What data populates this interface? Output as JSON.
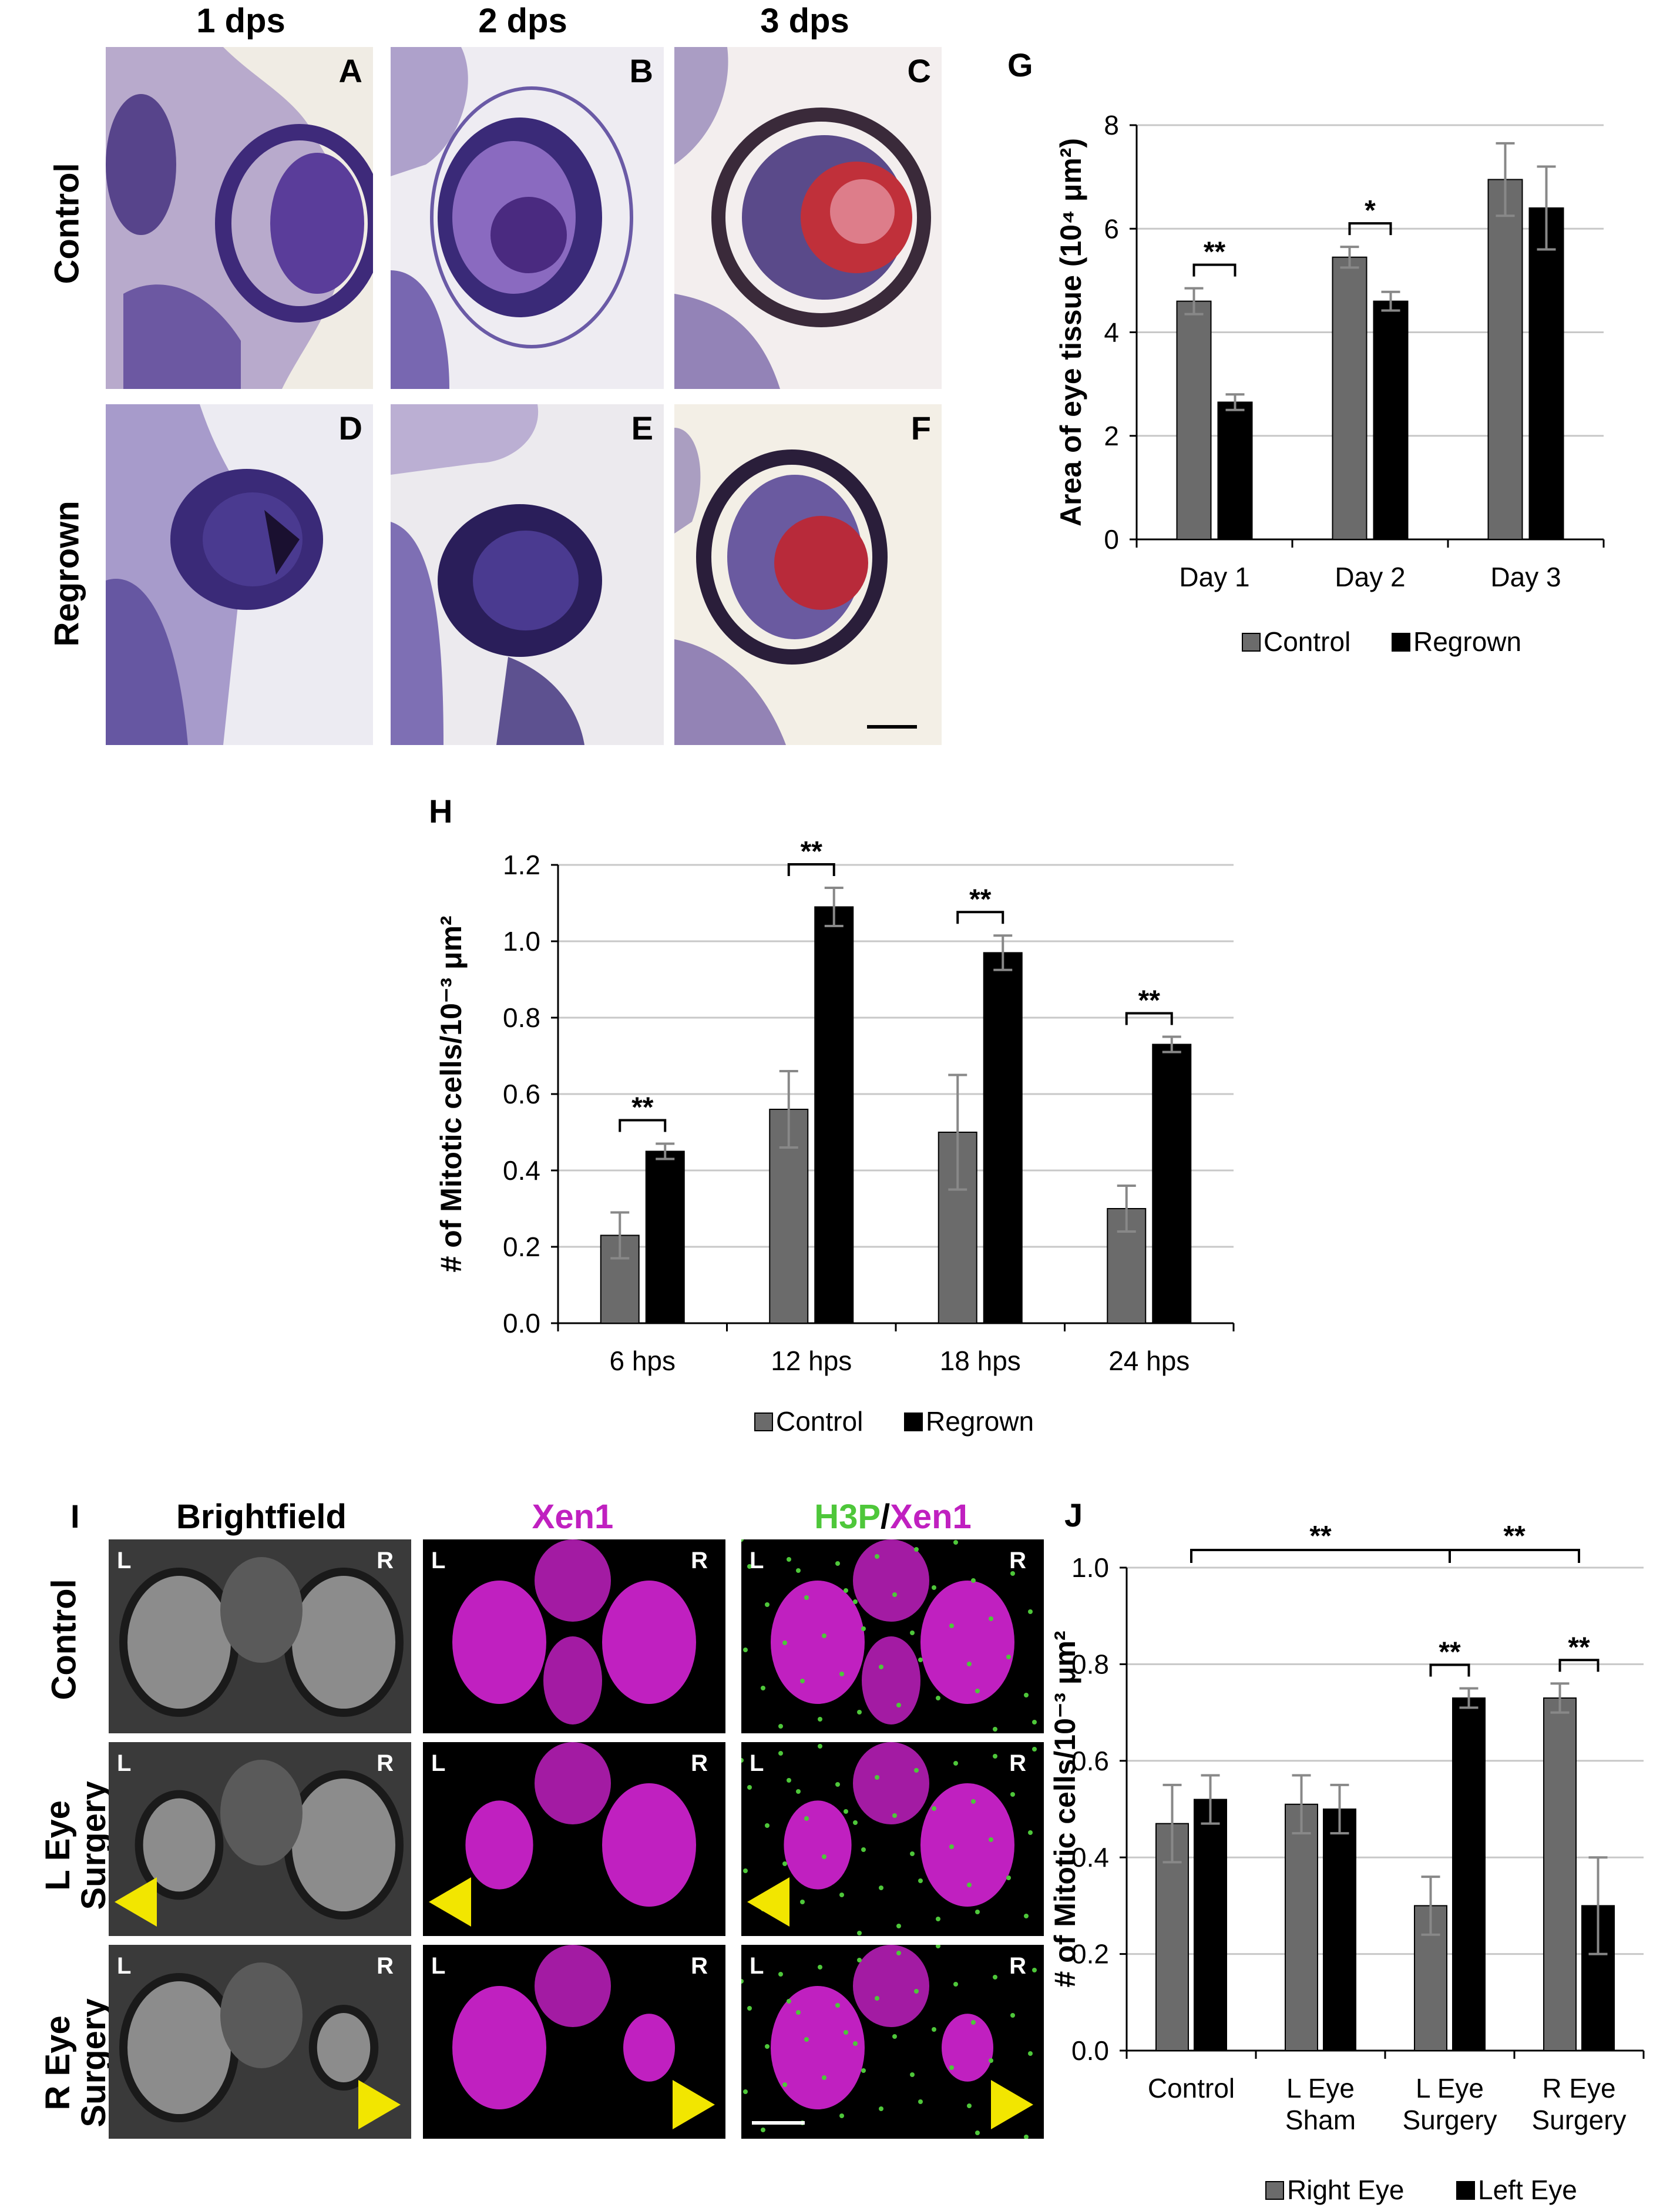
{
  "histology": {
    "columns": [
      "1 dps",
      "2 dps",
      "3 dps"
    ],
    "rows": [
      "Control",
      "Regrown"
    ],
    "panel_letters": [
      "A",
      "B",
      "C",
      "D",
      "E",
      "F"
    ]
  },
  "fluor": {
    "panel_letter": "I",
    "columns": {
      "brightfield": "Brightfield",
      "xen1": "Xen1",
      "h3p": "H3P",
      "slash": "/",
      "xen1b": "Xen1"
    },
    "rows": [
      "Control",
      "L Eye Surgery",
      "R Eye Surgery"
    ],
    "left_marker": "L",
    "right_marker": "R",
    "colors": {
      "xen1": "#c020c0",
      "h3p": "#4ec73a",
      "arrow": "#f2e600"
    }
  },
  "colors": {
    "control_bar": "#6b6b6b",
    "regrown_bar": "#000000",
    "error_bar": "#888888",
    "grid": "#c8c8c8"
  },
  "chart_data": [
    {
      "panel": "G",
      "type": "bar",
      "ylabel": "Area of eye tissue (10⁴ μm²)",
      "ylim": [
        0,
        8
      ],
      "yticks": [
        "0",
        "2",
        "4",
        "6",
        "8"
      ],
      "categories": [
        "Day 1",
        "Day 2",
        "Day 3"
      ],
      "series": [
        {
          "name": "Control",
          "values": [
            4.6,
            5.45,
            6.95
          ],
          "errors": [
            0.25,
            0.2,
            0.7
          ]
        },
        {
          "name": "Regrown",
          "values": [
            2.65,
            4.6,
            6.4
          ],
          "errors": [
            0.15,
            0.18,
            0.8
          ]
        }
      ],
      "significance": [
        {
          "category": 0,
          "label": "**"
        },
        {
          "category": 1,
          "label": "*"
        }
      ],
      "legend": "bottom-center",
      "grid": true
    },
    {
      "panel": "H",
      "type": "bar",
      "ylabel": "# of Mitotic cells/10⁻³ μm²",
      "ylim": [
        0,
        1.2
      ],
      "yticks": [
        "0.0",
        "0.2",
        "0.4",
        "0.6",
        "0.8",
        "1.0",
        "1.2"
      ],
      "categories": [
        "6 hps",
        "12 hps",
        "18 hps",
        "24 hps"
      ],
      "series": [
        {
          "name": "Control",
          "values": [
            0.23,
            0.56,
            0.5,
            0.3
          ],
          "errors": [
            0.06,
            0.1,
            0.15,
            0.06
          ]
        },
        {
          "name": "Regrown",
          "values": [
            0.45,
            1.09,
            0.97,
            0.73
          ],
          "errors": [
            0.02,
            0.05,
            0.045,
            0.02
          ]
        }
      ],
      "significance": [
        {
          "category": 0,
          "label": "**"
        },
        {
          "category": 1,
          "label": "**"
        },
        {
          "category": 2,
          "label": "**"
        },
        {
          "category": 3,
          "label": "**"
        }
      ],
      "legend": "bottom-center",
      "grid": true
    },
    {
      "panel": "J",
      "type": "bar",
      "ylabel": "# of Mitotic cells/10⁻³ μm²",
      "ylim": [
        0,
        1.0
      ],
      "yticks": [
        "0.0",
        "0.2",
        "0.4",
        "0.6",
        "0.8",
        "1.0"
      ],
      "categories": [
        [
          "Control"
        ],
        [
          "L Eye",
          "Sham"
        ],
        [
          "L Eye",
          "Surgery"
        ],
        [
          "R Eye",
          "Surgery"
        ]
      ],
      "series": [
        {
          "name": "Right Eye",
          "values": [
            0.47,
            0.51,
            0.3,
            0.73
          ],
          "errors": [
            0.08,
            0.06,
            0.06,
            0.03
          ]
        },
        {
          "name": "Left Eye",
          "values": [
            0.52,
            0.5,
            0.73,
            0.3
          ],
          "errors": [
            0.05,
            0.05,
            0.02,
            0.1
          ]
        }
      ],
      "significance": [
        {
          "category": 2,
          "label": "**"
        },
        {
          "category": 3,
          "label": "**"
        }
      ],
      "wide_brackets": [
        {
          "from": 0,
          "to": 2,
          "label": "**"
        },
        {
          "from": 2,
          "to": 3,
          "label": "**"
        }
      ],
      "legend": "bottom-center",
      "grid": true
    }
  ]
}
